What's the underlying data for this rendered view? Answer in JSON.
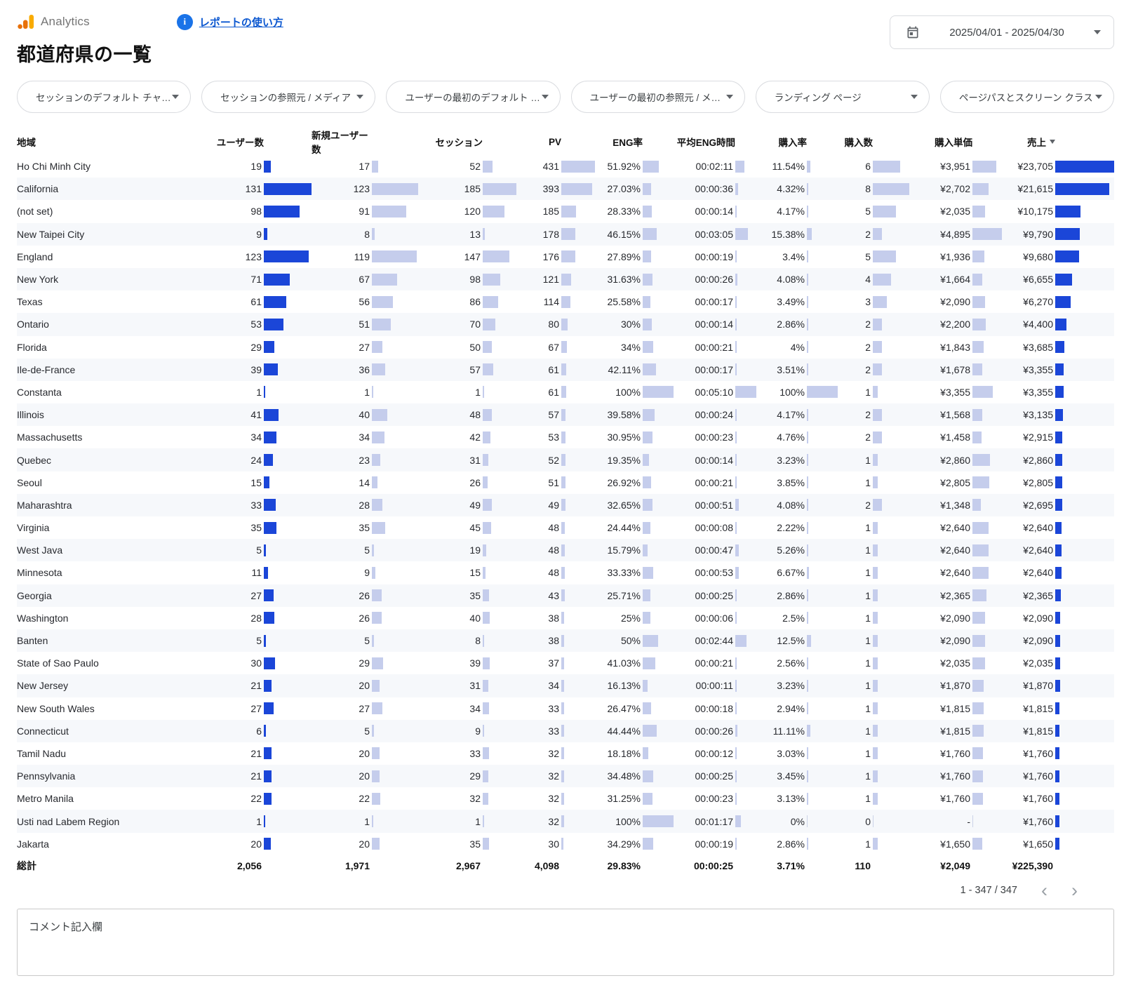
{
  "header": {
    "brand": "Analytics",
    "help_link": "レポートの使い方",
    "title": "都道府県の一覧",
    "date_range": "2025/04/01 - 2025/04/30"
  },
  "filters": [
    {
      "label": "セッションのデフォルト チャ…"
    },
    {
      "label": "セッションの参照元 / メディア"
    },
    {
      "label": "ユーザーの最初のデフォルト …"
    },
    {
      "label": "ユーザーの最初の参照元 / メ…"
    },
    {
      "label": "ランディング ページ"
    },
    {
      "label": "ページパスとスクリーン クラス"
    }
  ],
  "table": {
    "columns": [
      {
        "key": "region",
        "label": "地域",
        "bar": null
      },
      {
        "key": "users",
        "label": "ユーザー数",
        "bar": "dark"
      },
      {
        "key": "new_users",
        "label": "新規ユーザー数",
        "bar": "light"
      },
      {
        "key": "sessions",
        "label": "セッション",
        "bar": "light"
      },
      {
        "key": "pv",
        "label": "PV",
        "bar": "light"
      },
      {
        "key": "eng_rate",
        "label": "ENG率",
        "bar": "light"
      },
      {
        "key": "avg_eng_time",
        "label": "平均ENG時間",
        "bar": "light"
      },
      {
        "key": "purchase_rate",
        "label": "購入率",
        "bar": "light"
      },
      {
        "key": "purchases",
        "label": "購入数",
        "bar": "light"
      },
      {
        "key": "purchase_unit_price",
        "label": "購入単価",
        "bar": "light"
      },
      {
        "key": "revenue",
        "label": "売上",
        "bar": "dark",
        "sorted": "desc"
      }
    ],
    "rows": [
      {
        "region": "Ho Chi Minh City",
        "users": "19",
        "new_users": "17",
        "sessions": "52",
        "pv": "431",
        "eng_rate": "51.92%",
        "avg_eng_time": "00:02:11",
        "purchase_rate": "11.54%",
        "purchases": "6",
        "purchase_unit_price": "¥3,951",
        "revenue": "¥23,705"
      },
      {
        "region": "California",
        "users": "131",
        "new_users": "123",
        "sessions": "185",
        "pv": "393",
        "eng_rate": "27.03%",
        "avg_eng_time": "00:00:36",
        "purchase_rate": "4.32%",
        "purchases": "8",
        "purchase_unit_price": "¥2,702",
        "revenue": "¥21,615"
      },
      {
        "region": "(not set)",
        "users": "98",
        "new_users": "91",
        "sessions": "120",
        "pv": "185",
        "eng_rate": "28.33%",
        "avg_eng_time": "00:00:14",
        "purchase_rate": "4.17%",
        "purchases": "5",
        "purchase_unit_price": "¥2,035",
        "revenue": "¥10,175"
      },
      {
        "region": "New Taipei City",
        "users": "9",
        "new_users": "8",
        "sessions": "13",
        "pv": "178",
        "eng_rate": "46.15%",
        "avg_eng_time": "00:03:05",
        "purchase_rate": "15.38%",
        "purchases": "2",
        "purchase_unit_price": "¥4,895",
        "revenue": "¥9,790"
      },
      {
        "region": "England",
        "users": "123",
        "new_users": "119",
        "sessions": "147",
        "pv": "176",
        "eng_rate": "27.89%",
        "avg_eng_time": "00:00:19",
        "purchase_rate": "3.4%",
        "purchases": "5",
        "purchase_unit_price": "¥1,936",
        "revenue": "¥9,680"
      },
      {
        "region": "New York",
        "users": "71",
        "new_users": "67",
        "sessions": "98",
        "pv": "121",
        "eng_rate": "31.63%",
        "avg_eng_time": "00:00:26",
        "purchase_rate": "4.08%",
        "purchases": "4",
        "purchase_unit_price": "¥1,664",
        "revenue": "¥6,655"
      },
      {
        "region": "Texas",
        "users": "61",
        "new_users": "56",
        "sessions": "86",
        "pv": "114",
        "eng_rate": "25.58%",
        "avg_eng_time": "00:00:17",
        "purchase_rate": "3.49%",
        "purchases": "3",
        "purchase_unit_price": "¥2,090",
        "revenue": "¥6,270"
      },
      {
        "region": "Ontario",
        "users": "53",
        "new_users": "51",
        "sessions": "70",
        "pv": "80",
        "eng_rate": "30%",
        "avg_eng_time": "00:00:14",
        "purchase_rate": "2.86%",
        "purchases": "2",
        "purchase_unit_price": "¥2,200",
        "revenue": "¥4,400"
      },
      {
        "region": "Florida",
        "users": "29",
        "new_users": "27",
        "sessions": "50",
        "pv": "67",
        "eng_rate": "34%",
        "avg_eng_time": "00:00:21",
        "purchase_rate": "4%",
        "purchases": "2",
        "purchase_unit_price": "¥1,843",
        "revenue": "¥3,685"
      },
      {
        "region": "Ile-de-France",
        "users": "39",
        "new_users": "36",
        "sessions": "57",
        "pv": "61",
        "eng_rate": "42.11%",
        "avg_eng_time": "00:00:17",
        "purchase_rate": "3.51%",
        "purchases": "2",
        "purchase_unit_price": "¥1,678",
        "revenue": "¥3,355"
      },
      {
        "region": "Constanta",
        "users": "1",
        "new_users": "1",
        "sessions": "1",
        "pv": "61",
        "eng_rate": "100%",
        "avg_eng_time": "00:05:10",
        "purchase_rate": "100%",
        "purchases": "1",
        "purchase_unit_price": "¥3,355",
        "revenue": "¥3,355"
      },
      {
        "region": "Illinois",
        "users": "41",
        "new_users": "40",
        "sessions": "48",
        "pv": "57",
        "eng_rate": "39.58%",
        "avg_eng_time": "00:00:24",
        "purchase_rate": "4.17%",
        "purchases": "2",
        "purchase_unit_price": "¥1,568",
        "revenue": "¥3,135"
      },
      {
        "region": "Massachusetts",
        "users": "34",
        "new_users": "34",
        "sessions": "42",
        "pv": "53",
        "eng_rate": "30.95%",
        "avg_eng_time": "00:00:23",
        "purchase_rate": "4.76%",
        "purchases": "2",
        "purchase_unit_price": "¥1,458",
        "revenue": "¥2,915"
      },
      {
        "region": "Quebec",
        "users": "24",
        "new_users": "23",
        "sessions": "31",
        "pv": "52",
        "eng_rate": "19.35%",
        "avg_eng_time": "00:00:14",
        "purchase_rate": "3.23%",
        "purchases": "1",
        "purchase_unit_price": "¥2,860",
        "revenue": "¥2,860"
      },
      {
        "region": "Seoul",
        "users": "15",
        "new_users": "14",
        "sessions": "26",
        "pv": "51",
        "eng_rate": "26.92%",
        "avg_eng_time": "00:00:21",
        "purchase_rate": "3.85%",
        "purchases": "1",
        "purchase_unit_price": "¥2,805",
        "revenue": "¥2,805"
      },
      {
        "region": "Maharashtra",
        "users": "33",
        "new_users": "28",
        "sessions": "49",
        "pv": "49",
        "eng_rate": "32.65%",
        "avg_eng_time": "00:00:51",
        "purchase_rate": "4.08%",
        "purchases": "2",
        "purchase_unit_price": "¥1,348",
        "revenue": "¥2,695"
      },
      {
        "region": "Virginia",
        "users": "35",
        "new_users": "35",
        "sessions": "45",
        "pv": "48",
        "eng_rate": "24.44%",
        "avg_eng_time": "00:00:08",
        "purchase_rate": "2.22%",
        "purchases": "1",
        "purchase_unit_price": "¥2,640",
        "revenue": "¥2,640"
      },
      {
        "region": "West Java",
        "users": "5",
        "new_users": "5",
        "sessions": "19",
        "pv": "48",
        "eng_rate": "15.79%",
        "avg_eng_time": "00:00:47",
        "purchase_rate": "5.26%",
        "purchases": "1",
        "purchase_unit_price": "¥2,640",
        "revenue": "¥2,640"
      },
      {
        "region": "Minnesota",
        "users": "11",
        "new_users": "9",
        "sessions": "15",
        "pv": "48",
        "eng_rate": "33.33%",
        "avg_eng_time": "00:00:53",
        "purchase_rate": "6.67%",
        "purchases": "1",
        "purchase_unit_price": "¥2,640",
        "revenue": "¥2,640"
      },
      {
        "region": "Georgia",
        "users": "27",
        "new_users": "26",
        "sessions": "35",
        "pv": "43",
        "eng_rate": "25.71%",
        "avg_eng_time": "00:00:25",
        "purchase_rate": "2.86%",
        "purchases": "1",
        "purchase_unit_price": "¥2,365",
        "revenue": "¥2,365"
      },
      {
        "region": "Washington",
        "users": "28",
        "new_users": "26",
        "sessions": "40",
        "pv": "38",
        "eng_rate": "25%",
        "avg_eng_time": "00:00:06",
        "purchase_rate": "2.5%",
        "purchases": "1",
        "purchase_unit_price": "¥2,090",
        "revenue": "¥2,090"
      },
      {
        "region": "Banten",
        "users": "5",
        "new_users": "5",
        "sessions": "8",
        "pv": "38",
        "eng_rate": "50%",
        "avg_eng_time": "00:02:44",
        "purchase_rate": "12.5%",
        "purchases": "1",
        "purchase_unit_price": "¥2,090",
        "revenue": "¥2,090"
      },
      {
        "region": "State of Sao Paulo",
        "users": "30",
        "new_users": "29",
        "sessions": "39",
        "pv": "37",
        "eng_rate": "41.03%",
        "avg_eng_time": "00:00:21",
        "purchase_rate": "2.56%",
        "purchases": "1",
        "purchase_unit_price": "¥2,035",
        "revenue": "¥2,035"
      },
      {
        "region": "New Jersey",
        "users": "21",
        "new_users": "20",
        "sessions": "31",
        "pv": "34",
        "eng_rate": "16.13%",
        "avg_eng_time": "00:00:11",
        "purchase_rate": "3.23%",
        "purchases": "1",
        "purchase_unit_price": "¥1,870",
        "revenue": "¥1,870"
      },
      {
        "region": "New South Wales",
        "users": "27",
        "new_users": "27",
        "sessions": "34",
        "pv": "33",
        "eng_rate": "26.47%",
        "avg_eng_time": "00:00:18",
        "purchase_rate": "2.94%",
        "purchases": "1",
        "purchase_unit_price": "¥1,815",
        "revenue": "¥1,815"
      },
      {
        "region": "Connecticut",
        "users": "6",
        "new_users": "5",
        "sessions": "9",
        "pv": "33",
        "eng_rate": "44.44%",
        "avg_eng_time": "00:00:26",
        "purchase_rate": "11.11%",
        "purchases": "1",
        "purchase_unit_price": "¥1,815",
        "revenue": "¥1,815"
      },
      {
        "region": "Tamil Nadu",
        "users": "21",
        "new_users": "20",
        "sessions": "33",
        "pv": "32",
        "eng_rate": "18.18%",
        "avg_eng_time": "00:00:12",
        "purchase_rate": "3.03%",
        "purchases": "1",
        "purchase_unit_price": "¥1,760",
        "revenue": "¥1,760"
      },
      {
        "region": "Pennsylvania",
        "users": "21",
        "new_users": "20",
        "sessions": "29",
        "pv": "32",
        "eng_rate": "34.48%",
        "avg_eng_time": "00:00:25",
        "purchase_rate": "3.45%",
        "purchases": "1",
        "purchase_unit_price": "¥1,760",
        "revenue": "¥1,760"
      },
      {
        "region": "Metro Manila",
        "users": "22",
        "new_users": "22",
        "sessions": "32",
        "pv": "32",
        "eng_rate": "31.25%",
        "avg_eng_time": "00:00:23",
        "purchase_rate": "3.13%",
        "purchases": "1",
        "purchase_unit_price": "¥1,760",
        "revenue": "¥1,760"
      },
      {
        "region": "Usti nad Labem Region",
        "users": "1",
        "new_users": "1",
        "sessions": "1",
        "pv": "32",
        "eng_rate": "100%",
        "avg_eng_time": "00:01:17",
        "purchase_rate": "0%",
        "purchases": "0",
        "purchase_unit_price": "-",
        "revenue": "¥1,760"
      },
      {
        "region": "Jakarta",
        "users": "20",
        "new_users": "20",
        "sessions": "35",
        "pv": "30",
        "eng_rate": "34.29%",
        "avg_eng_time": "00:00:19",
        "purchase_rate": "2.86%",
        "purchases": "1",
        "purchase_unit_price": "¥1,650",
        "revenue": "¥1,650"
      }
    ],
    "totals": {
      "region": "総計",
      "users": "2,056",
      "new_users": "1,971",
      "sessions": "2,967",
      "pv": "4,098",
      "eng_rate": "29.83%",
      "avg_eng_time": "00:00:25",
      "purchase_rate": "3.71%",
      "purchases": "110",
      "purchase_unit_price": "¥2,049",
      "revenue": "¥225,390"
    }
  },
  "pagination": {
    "range_label": "1 - 347 / 347"
  },
  "comment": {
    "label": "コメント記入欄"
  },
  "colors": {
    "bar_dark": "#1b46d8",
    "bar_light": "#c5cdec",
    "link_blue": "#0b57d0",
    "info_blue": "#1a73e8",
    "logo_orange": "#f9ab00",
    "logo_orange_dark": "#e8710a",
    "alt_row": "#f6f8fb"
  }
}
